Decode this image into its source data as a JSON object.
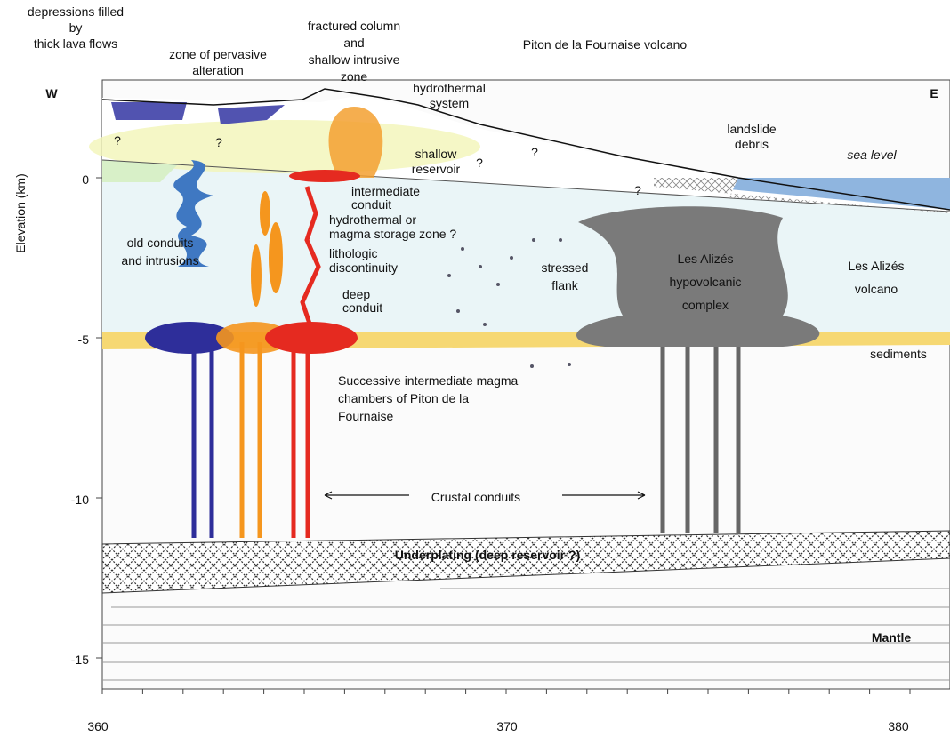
{
  "header": {
    "title": "Piton de la Fournaise volcano",
    "west": "W",
    "east": "E"
  },
  "axes": {
    "y_label": "Elevation (km)",
    "y_ticks": [
      0,
      -5,
      -10,
      -15
    ],
    "x_ticks": [
      360,
      370,
      380
    ]
  },
  "annotations": [
    {
      "lines": [
        "depressions filled",
        "by",
        "thick lava flows"
      ]
    },
    {
      "lines": [
        "zone of pervasive",
        "alteration"
      ]
    },
    {
      "lines": [
        "fractured column",
        "and",
        "shallow intrusive",
        "zone"
      ]
    },
    {
      "lines": [
        "hydrothermal",
        "system"
      ]
    },
    {
      "lines": [
        "shallow",
        "reservoir"
      ]
    },
    {
      "lines": [
        "landslide",
        "debris"
      ]
    },
    {
      "lines": [
        "sea level"
      ]
    },
    {
      "lines": [
        "intermediate",
        "conduit"
      ]
    },
    {
      "lines": [
        "hydrothermal or",
        "magma storage zone ?"
      ]
    },
    {
      "lines": [
        "lithologic",
        "discontinuity"
      ]
    },
    {
      "lines": [
        "deep",
        "conduit"
      ]
    },
    {
      "lines": [
        "old conduits",
        "and intrusions"
      ]
    },
    {
      "lines": [
        "stressed",
        "flank"
      ]
    },
    {
      "lines": [
        "Les Alizés",
        "hypovolcanic",
        "complex"
      ]
    },
    {
      "lines": [
        "Les Alizés",
        "volcano"
      ]
    },
    {
      "lines": [
        "sediments"
      ]
    },
    {
      "lines": [
        "Successive intermediate magma",
        "chambers of Piton de la",
        "Fournaise"
      ]
    },
    {
      "lines": [
        "Crustal conduits"
      ]
    },
    {
      "lines": [
        "Underplating (deep reservoir ?)"
      ]
    },
    {
      "lines": [
        "Mantle"
      ]
    }
  ],
  "question_marks": [
    "?",
    "?",
    "?",
    "?",
    "?"
  ]
}
